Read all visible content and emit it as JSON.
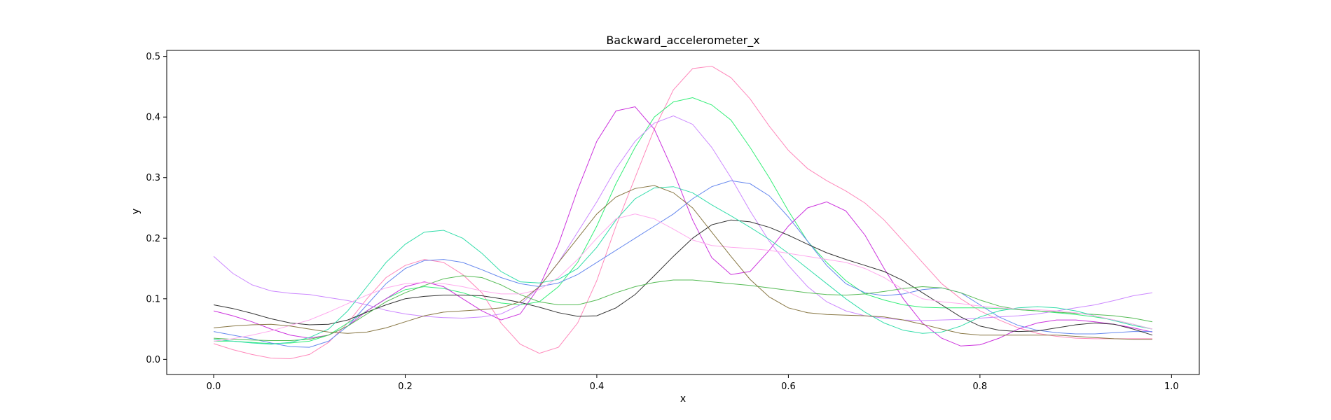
{
  "chart_data": {
    "type": "line",
    "title": "Backward_accelerometer_x",
    "xlabel": "x",
    "ylabel": "y",
    "xlim": [
      -0.049,
      1.029
    ],
    "ylim": [
      -0.025,
      0.51
    ],
    "xticks": [
      0.0,
      0.2,
      0.4,
      0.6,
      0.8,
      1.0
    ],
    "xtick_labels": [
      "0.0",
      "0.2",
      "0.4",
      "0.6",
      "0.8",
      "1.0"
    ],
    "yticks": [
      0.0,
      0.1,
      0.2,
      0.3,
      0.4,
      0.5
    ],
    "ytick_labels": [
      "0.0",
      "0.1",
      "0.2",
      "0.3",
      "0.4",
      "0.5"
    ],
    "grid": false,
    "legend": "none",
    "x": [
      0.0,
      0.02,
      0.04,
      0.06,
      0.08,
      0.1,
      0.12,
      0.14,
      0.16,
      0.18,
      0.2,
      0.22,
      0.24,
      0.26,
      0.28,
      0.3,
      0.32,
      0.34,
      0.36,
      0.38,
      0.4,
      0.42,
      0.44,
      0.46,
      0.48,
      0.5,
      0.52,
      0.54,
      0.56,
      0.58,
      0.6,
      0.62,
      0.64,
      0.66,
      0.68,
      0.7,
      0.72,
      0.74,
      0.76,
      0.78,
      0.8,
      0.82,
      0.84,
      0.86,
      0.88,
      0.9,
      0.92,
      0.94,
      0.96,
      0.98
    ],
    "series": [
      {
        "color": "#ff88bb",
        "values": [
          0.026,
          0.016,
          0.008,
          0.002,
          0.001,
          0.008,
          0.028,
          0.06,
          0.1,
          0.135,
          0.155,
          0.165,
          0.16,
          0.14,
          0.11,
          0.06,
          0.025,
          0.01,
          0.02,
          0.06,
          0.13,
          0.22,
          0.3,
          0.38,
          0.445,
          0.48,
          0.484,
          0.465,
          0.43,
          0.385,
          0.345,
          0.315,
          0.295,
          0.278,
          0.258,
          0.23,
          0.195,
          0.16,
          0.125,
          0.1,
          0.08,
          0.065,
          0.052,
          0.043,
          0.038,
          0.035,
          0.034,
          0.034,
          0.034,
          0.034
        ]
      },
      {
        "color": "#33ee77",
        "values": [
          0.03,
          0.03,
          0.028,
          0.026,
          0.027,
          0.03,
          0.04,
          0.06,
          0.08,
          0.1,
          0.115,
          0.12,
          0.117,
          0.11,
          0.1,
          0.093,
          0.09,
          0.095,
          0.12,
          0.16,
          0.22,
          0.29,
          0.35,
          0.4,
          0.425,
          0.432,
          0.42,
          0.395,
          0.35,
          0.3,
          0.245,
          0.195,
          0.16,
          0.13,
          0.108,
          0.098,
          0.09,
          0.086,
          0.085,
          0.085,
          0.085,
          0.084,
          0.082,
          0.08,
          0.077,
          0.074,
          0.07,
          0.065,
          0.058,
          0.05
        ]
      },
      {
        "color": "#cc33dd",
        "values": [
          0.08,
          0.072,
          0.062,
          0.05,
          0.04,
          0.035,
          0.04,
          0.055,
          0.08,
          0.1,
          0.12,
          0.128,
          0.12,
          0.1,
          0.08,
          0.065,
          0.075,
          0.12,
          0.19,
          0.28,
          0.36,
          0.41,
          0.417,
          0.38,
          0.31,
          0.23,
          0.168,
          0.14,
          0.145,
          0.18,
          0.22,
          0.25,
          0.26,
          0.245,
          0.205,
          0.15,
          0.1,
          0.06,
          0.035,
          0.022,
          0.024,
          0.035,
          0.05,
          0.06,
          0.065,
          0.065,
          0.062,
          0.058,
          0.052,
          0.045
        ]
      },
      {
        "color": "#cc88ff",
        "values": [
          0.17,
          0.142,
          0.123,
          0.113,
          0.109,
          0.107,
          0.102,
          0.097,
          0.09,
          0.081,
          0.075,
          0.071,
          0.069,
          0.068,
          0.07,
          0.075,
          0.09,
          0.12,
          0.16,
          0.21,
          0.26,
          0.315,
          0.36,
          0.39,
          0.402,
          0.388,
          0.35,
          0.3,
          0.245,
          0.195,
          0.155,
          0.12,
          0.095,
          0.08,
          0.072,
          0.068,
          0.065,
          0.064,
          0.065,
          0.066,
          0.068,
          0.07,
          0.072,
          0.075,
          0.08,
          0.085,
          0.09,
          0.097,
          0.105,
          0.11
        ]
      },
      {
        "color": "#6688ee",
        "values": [
          0.046,
          0.04,
          0.034,
          0.027,
          0.021,
          0.02,
          0.03,
          0.055,
          0.09,
          0.125,
          0.15,
          0.163,
          0.165,
          0.16,
          0.148,
          0.135,
          0.125,
          0.12,
          0.126,
          0.14,
          0.16,
          0.18,
          0.2,
          0.22,
          0.24,
          0.265,
          0.285,
          0.295,
          0.29,
          0.27,
          0.235,
          0.195,
          0.155,
          0.125,
          0.11,
          0.105,
          0.108,
          0.115,
          0.118,
          0.11,
          0.09,
          0.07,
          0.056,
          0.048,
          0.044,
          0.042,
          0.042,
          0.044,
          0.046,
          0.046
        ]
      },
      {
        "color": "#333333",
        "values": [
          0.09,
          0.084,
          0.076,
          0.067,
          0.06,
          0.057,
          0.058,
          0.065,
          0.078,
          0.09,
          0.1,
          0.104,
          0.106,
          0.106,
          0.105,
          0.1,
          0.094,
          0.086,
          0.077,
          0.071,
          0.072,
          0.085,
          0.107,
          0.138,
          0.17,
          0.2,
          0.222,
          0.23,
          0.227,
          0.218,
          0.205,
          0.19,
          0.176,
          0.165,
          0.155,
          0.145,
          0.13,
          0.11,
          0.09,
          0.07,
          0.055,
          0.048,
          0.046,
          0.047,
          0.052,
          0.057,
          0.06,
          0.058,
          0.05,
          0.04
        ]
      },
      {
        "color": "#55bb55",
        "values": [
          0.035,
          0.033,
          0.032,
          0.031,
          0.031,
          0.033,
          0.04,
          0.055,
          0.075,
          0.095,
          0.11,
          0.122,
          0.133,
          0.138,
          0.135,
          0.123,
          0.107,
          0.095,
          0.09,
          0.09,
          0.098,
          0.11,
          0.12,
          0.127,
          0.131,
          0.131,
          0.128,
          0.125,
          0.122,
          0.118,
          0.114,
          0.11,
          0.107,
          0.106,
          0.108,
          0.112,
          0.117,
          0.12,
          0.118,
          0.11,
          0.098,
          0.088,
          0.082,
          0.08,
          0.078,
          0.076,
          0.074,
          0.072,
          0.068,
          0.062
        ]
      },
      {
        "color": "#33ddaa",
        "values": [
          0.033,
          0.03,
          0.027,
          0.025,
          0.028,
          0.036,
          0.05,
          0.08,
          0.12,
          0.16,
          0.19,
          0.21,
          0.213,
          0.2,
          0.175,
          0.145,
          0.128,
          0.126,
          0.132,
          0.15,
          0.185,
          0.23,
          0.265,
          0.283,
          0.285,
          0.275,
          0.255,
          0.237,
          0.218,
          0.198,
          0.175,
          0.15,
          0.125,
          0.1,
          0.078,
          0.06,
          0.048,
          0.043,
          0.045,
          0.055,
          0.07,
          0.08,
          0.085,
          0.087,
          0.085,
          0.08,
          0.072,
          0.064,
          0.056,
          0.05
        ]
      },
      {
        "color": "#ffaaee",
        "values": [
          0.03,
          0.034,
          0.04,
          0.047,
          0.056,
          0.065,
          0.078,
          0.092,
          0.106,
          0.118,
          0.125,
          0.127,
          0.125,
          0.12,
          0.113,
          0.108,
          0.108,
          0.115,
          0.135,
          0.165,
          0.2,
          0.232,
          0.24,
          0.232,
          0.215,
          0.197,
          0.188,
          0.185,
          0.183,
          0.18,
          0.175,
          0.17,
          0.165,
          0.16,
          0.15,
          0.135,
          0.115,
          0.1,
          0.095,
          0.092,
          0.088,
          0.085,
          0.083,
          0.082,
          0.08,
          0.077,
          0.072,
          0.065,
          0.058,
          0.05
        ]
      },
      {
        "color": "#887744",
        "values": [
          0.052,
          0.055,
          0.057,
          0.058,
          0.055,
          0.05,
          0.045,
          0.043,
          0.045,
          0.052,
          0.062,
          0.072,
          0.078,
          0.08,
          0.082,
          0.085,
          0.095,
          0.12,
          0.16,
          0.2,
          0.24,
          0.268,
          0.282,
          0.287,
          0.275,
          0.25,
          0.21,
          0.17,
          0.132,
          0.103,
          0.085,
          0.077,
          0.074,
          0.073,
          0.072,
          0.07,
          0.065,
          0.058,
          0.05,
          0.043,
          0.04,
          0.04,
          0.04,
          0.04,
          0.04,
          0.038,
          0.036,
          0.034,
          0.033,
          0.033
        ]
      }
    ]
  }
}
